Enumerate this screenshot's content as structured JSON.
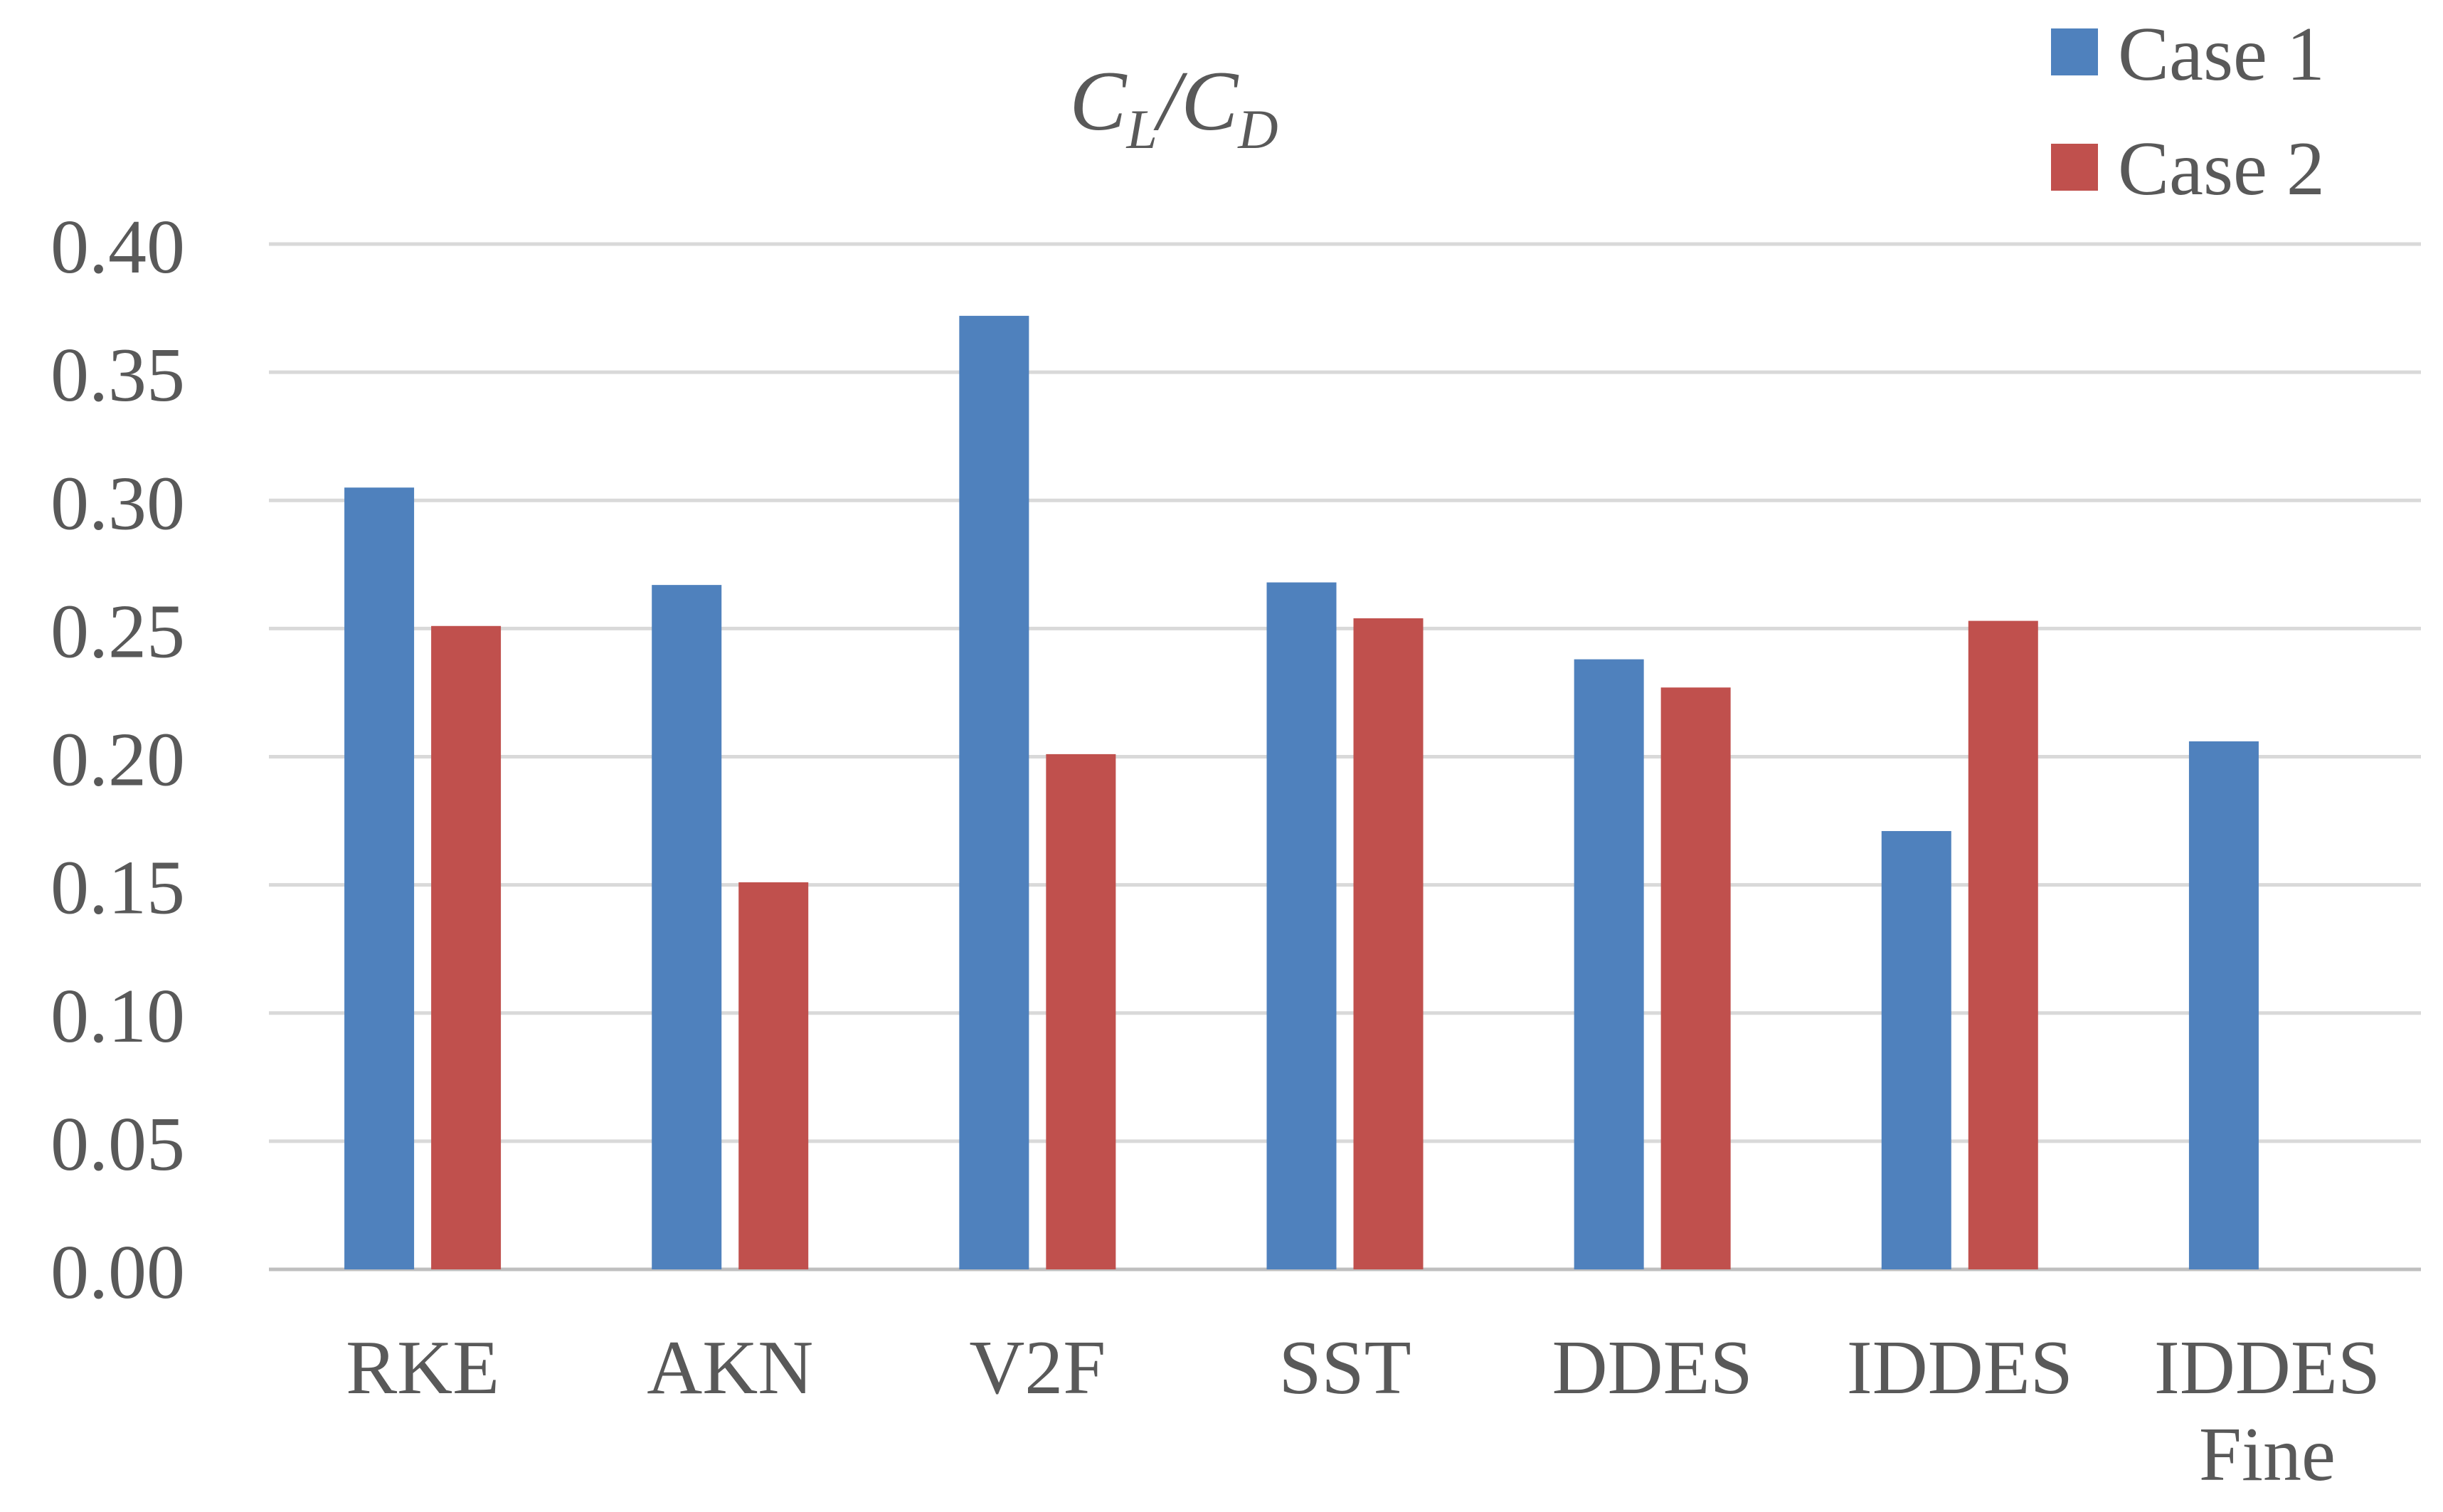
{
  "chart_data": {
    "type": "bar",
    "title": {
      "base1": "C",
      "sub1": "L",
      "sep": "/",
      "base2": "C",
      "sub2": "D"
    },
    "categories": [
      [
        "RKE"
      ],
      [
        "AKN"
      ],
      [
        "V2F"
      ],
      [
        "SST"
      ],
      [
        "DDES"
      ],
      [
        "IDDES"
      ],
      [
        "IDDES",
        "Fine"
      ]
    ],
    "series": [
      {
        "name": "Case 1",
        "color": "#4f81bd",
        "values": [
          0.305,
          0.267,
          0.372,
          0.268,
          0.238,
          0.171,
          0.206
        ]
      },
      {
        "name": "Case 2",
        "color": "#c0504d",
        "values": [
          0.251,
          0.151,
          0.201,
          0.254,
          0.227,
          0.253,
          null
        ]
      }
    ],
    "yticks": [
      "0.00",
      "0.05",
      "0.10",
      "0.15",
      "0.20",
      "0.25",
      "0.30",
      "0.35",
      "0.40"
    ],
    "ylim": [
      0,
      0.4
    ],
    "xlabel": "",
    "ylabel": "",
    "grid": true,
    "legend_position": "top-right"
  }
}
